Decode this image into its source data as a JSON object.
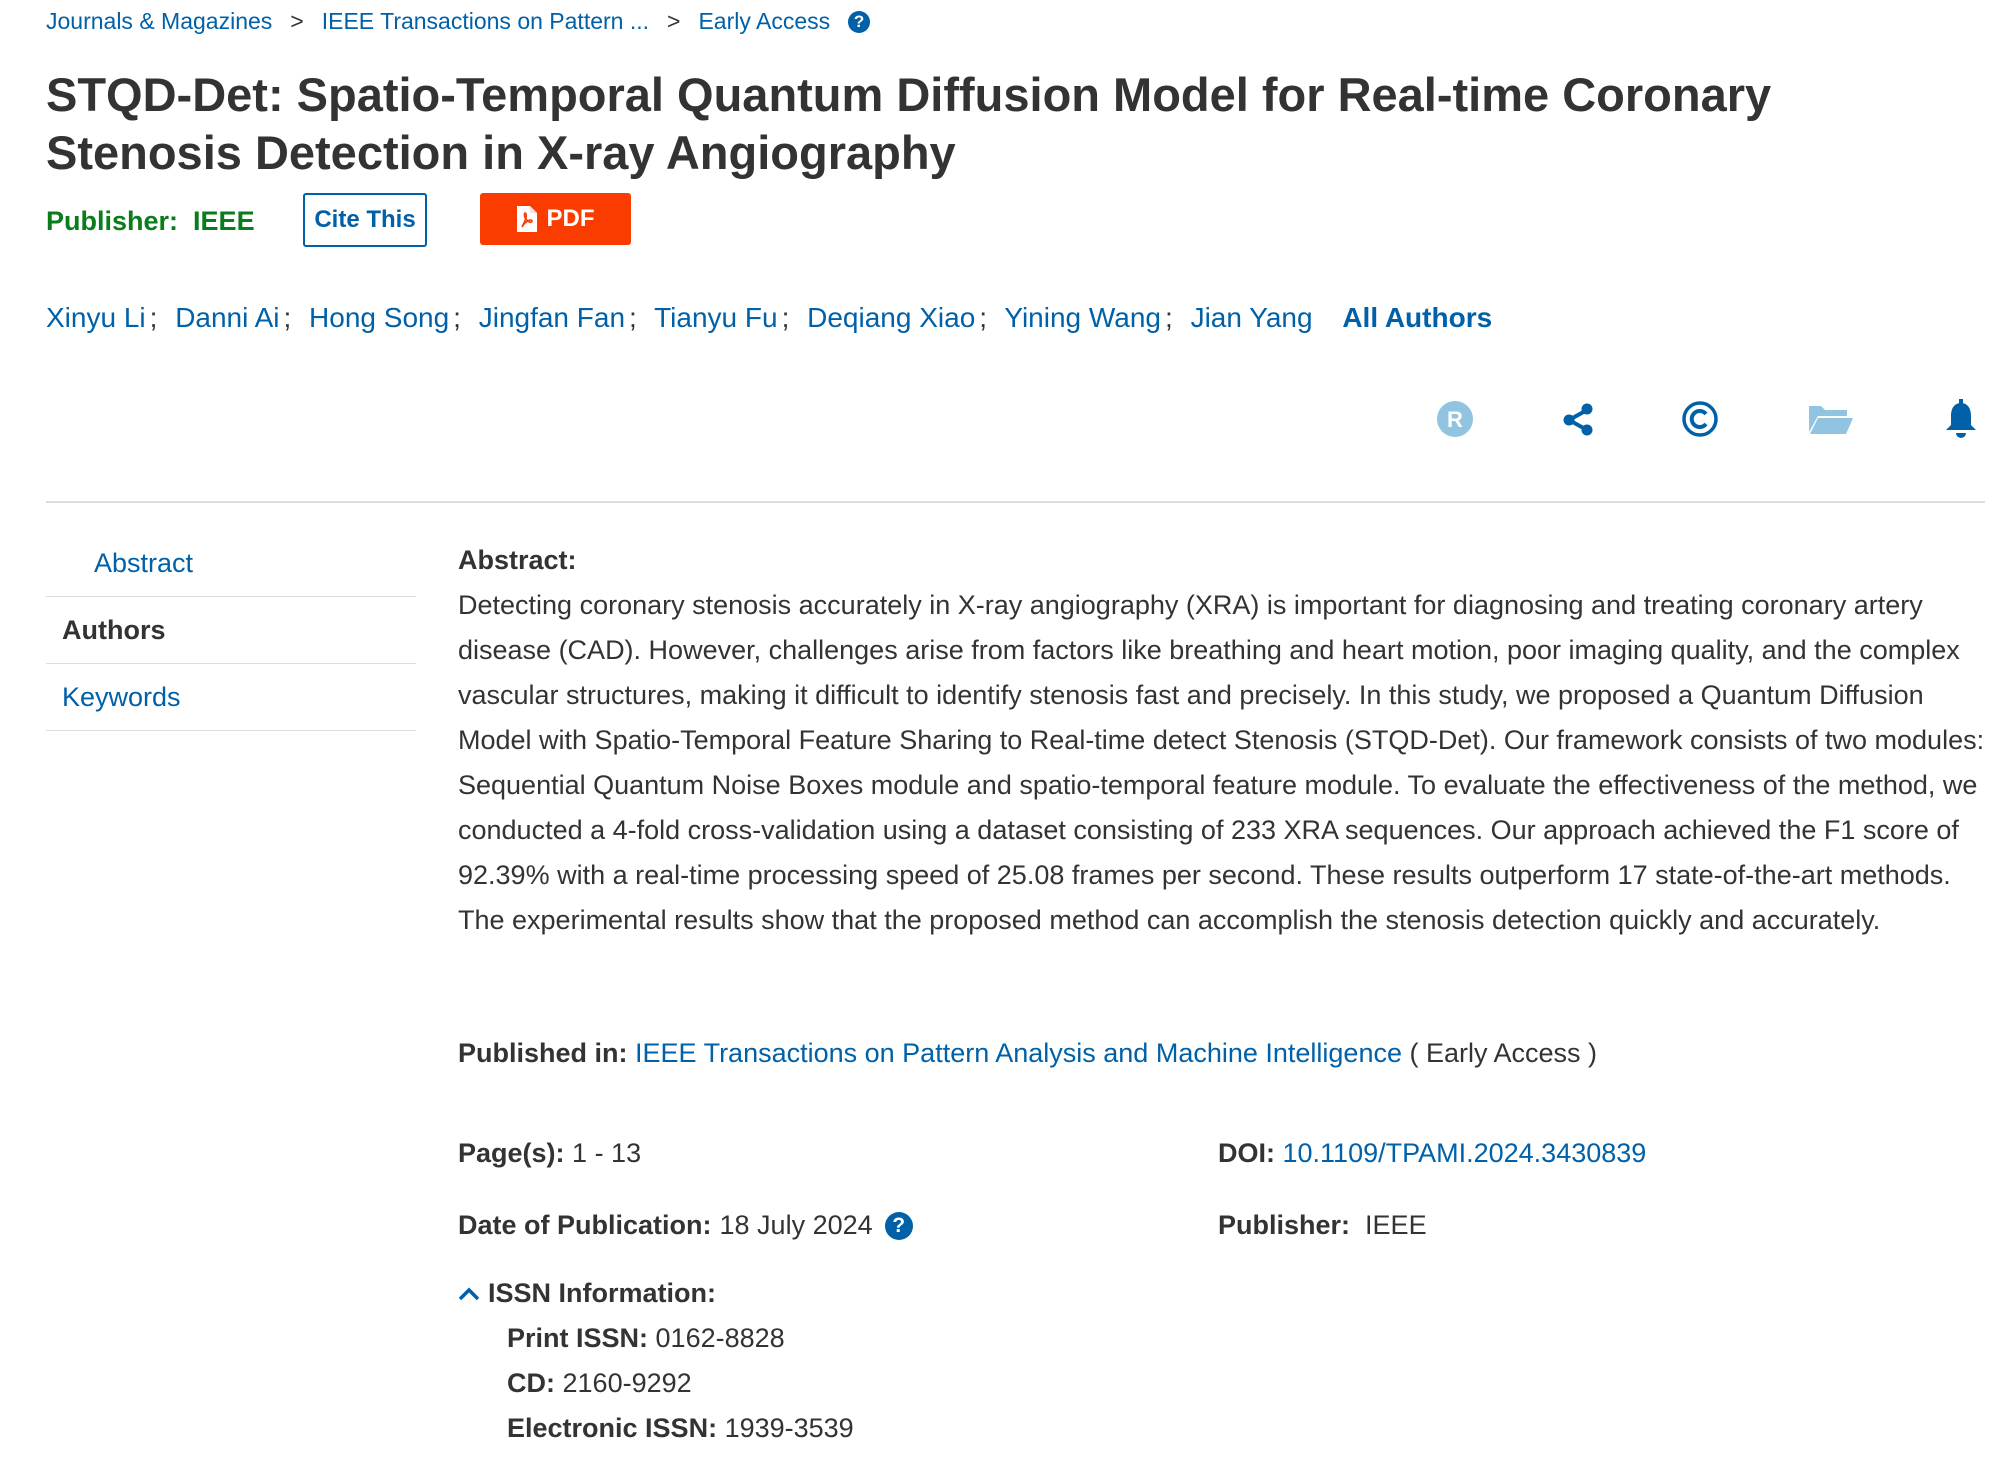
{
  "breadcrumb": [
    "Journals & Magazines",
    "IEEE Transactions on Pattern ...",
    "Early Access"
  ],
  "title": "STQD-Det: Spatio-Temporal Quantum Diffusion Model for Real-time Coronary Stenosis Detection in X-ray Angiography",
  "publisher_label": "Publisher:",
  "publisher": "IEEE",
  "cite_button": "Cite This",
  "pdf_button": "PDF",
  "authors": [
    "Xinyu Li",
    "Danni Ai",
    "Hong Song",
    "Jingfan Fan",
    "Tianyu Fu",
    "Deqiang Xiao",
    "Yining Wang",
    "Jian Yang"
  ],
  "all_authors": "All Authors",
  "action_icons": [
    "rights-icon",
    "share-icon",
    "copyright-icon",
    "folder-icon",
    "bell-icon"
  ],
  "sidebar": [
    {
      "label": "Abstract"
    },
    {
      "label": "Authors"
    },
    {
      "label": "Keywords"
    }
  ],
  "abstract": {
    "heading": "Abstract:",
    "text": "Detecting coronary stenosis accurately in X-ray angiography (XRA) is important for diagnosing and treating coronary artery disease (CAD). However, challenges arise from factors like breathing and heart motion, poor imaging quality, and the complex vascular structures, making it difficult to identify stenosis fast and precisely. In this study, we proposed a Quantum Diffusion Model with Spatio-Temporal Feature Sharing to Real-time detect Stenosis (STQD-Det). Our framework consists of two modules: Sequential Quantum Noise Boxes module and spatio-temporal feature module. To evaluate the effectiveness of the method, we conducted a 4-fold cross-validation using a dataset consisting of 233 XRA sequences. Our approach achieved the F1 score of 92.39% with a real-time processing speed of 25.08 frames per second. These results outperform 17 state-of-the-art methods. The experimental results show that the proposed method can accomplish the stenosis detection quickly and accurately."
  },
  "meta": {
    "published_in_label": "Published in:",
    "published_in": "IEEE Transactions on Pattern Analysis and Machine Intelligence",
    "published_in_suffix": "( Early Access )",
    "pages_label": "Page(s):",
    "pages": "1 - 13",
    "doi_label": "DOI:",
    "doi": "10.1109/TPAMI.2024.3430839",
    "date_label": "Date of Publication:",
    "date": "18 July 2024",
    "publisher_label": "Publisher:",
    "publisher": "IEEE",
    "issn_label": "ISSN Information:",
    "print_issn_label": "Print ISSN:",
    "print_issn": "0162-8828",
    "cd_label": "CD:",
    "cd": "2160-9292",
    "eissn_label": "Electronic ISSN:",
    "eissn": "1939-3539"
  },
  "colors": {
    "link": "#0060a8",
    "publisher_green": "#0a7c1c",
    "pdf_red": "#fa3c00",
    "icon_light": "#90c4e0"
  }
}
